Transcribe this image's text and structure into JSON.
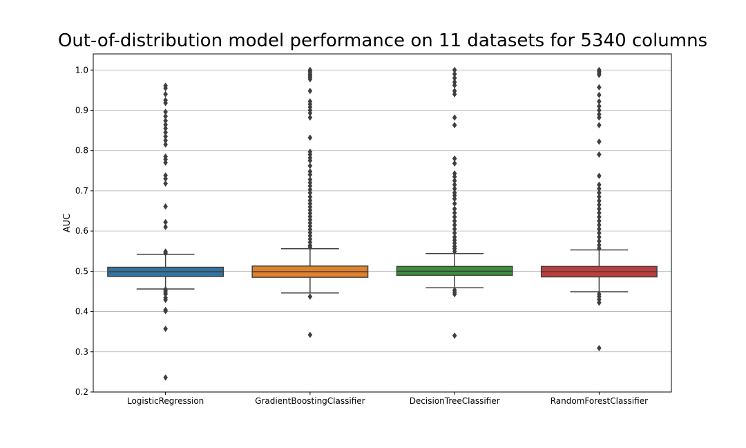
{
  "chart_data": {
    "type": "box",
    "title": "Out-of-distribution model performance on 11 datasets for 5340 columns",
    "xlabel": "",
    "ylabel": "AUC",
    "ylim": [
      0.2,
      1.04
    ],
    "yticks": [
      "0.2",
      "0.3",
      "0.4",
      "0.5",
      "0.6",
      "0.7",
      "0.8",
      "0.9",
      "1.0"
    ],
    "grid": "horizontal",
    "colors": {
      "box_fill": [
        "#3274a1",
        "#e1812c",
        "#3a923a",
        "#c03d3e"
      ],
      "line": "#3f3f3f",
      "grid": "#b0b0b0"
    },
    "series": [
      {
        "name": "LogisticRegression",
        "q1": 0.487,
        "median": 0.499,
        "q3": 0.51,
        "whisker_low": 0.456,
        "whisker_high": 0.542,
        "outliers": [
          0.961,
          0.955,
          0.94,
          0.925,
          0.918,
          0.896,
          0.885,
          0.874,
          0.864,
          0.855,
          0.845,
          0.835,
          0.825,
          0.815,
          0.785,
          0.778,
          0.77,
          0.738,
          0.73,
          0.718,
          0.661,
          0.622,
          0.61,
          0.549,
          0.545,
          0.455,
          0.451,
          0.446,
          0.443,
          0.434,
          0.429,
          0.404,
          0.401,
          0.357,
          0.236
        ]
      },
      {
        "name": "GradientBoostingClassifier",
        "q1": 0.485,
        "median": 0.499,
        "q3": 0.513,
        "whisker_low": 0.446,
        "whisker_high": 0.556,
        "outliers": [
          1.0,
          0.997,
          0.993,
          0.989,
          0.985,
          0.981,
          0.977,
          0.948,
          0.922,
          0.915,
          0.908,
          0.9,
          0.893,
          0.882,
          0.832,
          0.797,
          0.79,
          0.782,
          0.775,
          0.762,
          0.748,
          0.74,
          0.728,
          0.72,
          0.712,
          0.703,
          0.695,
          0.685,
          0.676,
          0.668,
          0.66,
          0.652,
          0.644,
          0.636,
          0.628,
          0.62,
          0.612,
          0.604,
          0.596,
          0.588,
          0.58,
          0.572,
          0.564,
          0.56,
          0.437,
          0.342
        ]
      },
      {
        "name": "DecisionTreeClassifier",
        "q1": 0.49,
        "median": 0.5,
        "q3": 0.512,
        "whisker_low": 0.459,
        "whisker_high": 0.544,
        "outliers": [
          1.0,
          0.99,
          0.98,
          0.97,
          0.962,
          0.948,
          0.94,
          0.882,
          0.863,
          0.78,
          0.768,
          0.743,
          0.735,
          0.725,
          0.715,
          0.705,
          0.695,
          0.688,
          0.68,
          0.668,
          0.655,
          0.645,
          0.635,
          0.625,
          0.615,
          0.605,
          0.595,
          0.585,
          0.577,
          0.57,
          0.562,
          0.556,
          0.549,
          0.453,
          0.448,
          0.443,
          0.34
        ]
      },
      {
        "name": "RandomForestClassifier",
        "q1": 0.486,
        "median": 0.499,
        "q3": 0.512,
        "whisker_low": 0.449,
        "whisker_high": 0.553,
        "outliers": [
          1.0,
          0.996,
          0.992,
          0.988,
          0.957,
          0.938,
          0.922,
          0.91,
          0.9,
          0.89,
          0.882,
          0.863,
          0.822,
          0.79,
          0.737,
          0.715,
          0.705,
          0.695,
          0.685,
          0.675,
          0.665,
          0.655,
          0.645,
          0.635,
          0.625,
          0.615,
          0.605,
          0.595,
          0.585,
          0.575,
          0.565,
          0.557,
          0.443,
          0.437,
          0.43,
          0.422,
          0.309
        ]
      }
    ]
  }
}
